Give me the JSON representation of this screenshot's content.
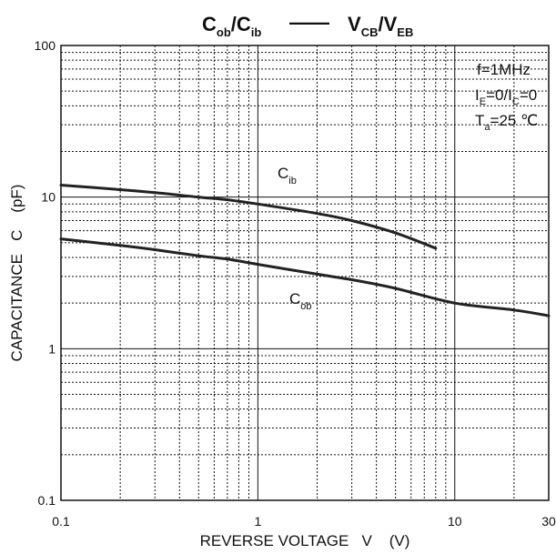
{
  "chart_data": {
    "type": "line",
    "title": {
      "main1": "C",
      "main1_sub": "ob",
      "sep": "/",
      "main2": "C",
      "main2_sub": "ib",
      "dash": "——",
      "v1": "V",
      "v1_sub": "CB",
      "sep2": "/",
      "v2": "V",
      "v2_sub": "EB"
    },
    "xlabel": "REVERSE VOLTAGE   V    (V)",
    "ylabel": "CAPACITANCE   C    (pF)",
    "x_scale": "log",
    "y_scale": "log",
    "xlim": [
      0.1,
      30
    ],
    "ylim": [
      0.1,
      100
    ],
    "grid": true,
    "x_ticks": [
      {
        "value": 0.1,
        "label": "0.1"
      },
      {
        "value": 1,
        "label": "1"
      },
      {
        "value": 10,
        "label": "10"
      },
      {
        "value": 30,
        "label": "30"
      }
    ],
    "y_ticks": [
      {
        "value": 0.1,
        "label": "0.1"
      },
      {
        "value": 1,
        "label": "1"
      },
      {
        "value": 10,
        "label": "10"
      },
      {
        "value": 100,
        "label": "100"
      }
    ],
    "conditions": {
      "line1": "f=1MHz",
      "line2_a": "I",
      "line2_a_sub": "E",
      "line2_b": "=0/I",
      "line2_b_sub": "C",
      "line2_c": "=0",
      "line3_a": "T",
      "line3_a_sub": "a",
      "line3_b": "=25 ℃"
    },
    "series": [
      {
        "name": "Cib",
        "label": "C",
        "label_sub": "ib",
        "x": [
          0.1,
          0.2,
          0.3,
          0.5,
          0.7,
          1,
          2,
          3,
          5,
          8
        ],
        "y": [
          12,
          11.2,
          10.7,
          10.0,
          9.6,
          9.0,
          7.8,
          7.0,
          5.8,
          4.6
        ]
      },
      {
        "name": "Cob",
        "label": "C",
        "label_sub": "ob",
        "x": [
          0.1,
          0.2,
          0.3,
          0.5,
          0.7,
          1,
          2,
          3,
          5,
          10,
          20,
          30
        ],
        "y": [
          5.3,
          4.8,
          4.5,
          4.1,
          3.9,
          3.6,
          3.1,
          2.85,
          2.5,
          2.0,
          1.8,
          1.65
        ]
      }
    ]
  }
}
